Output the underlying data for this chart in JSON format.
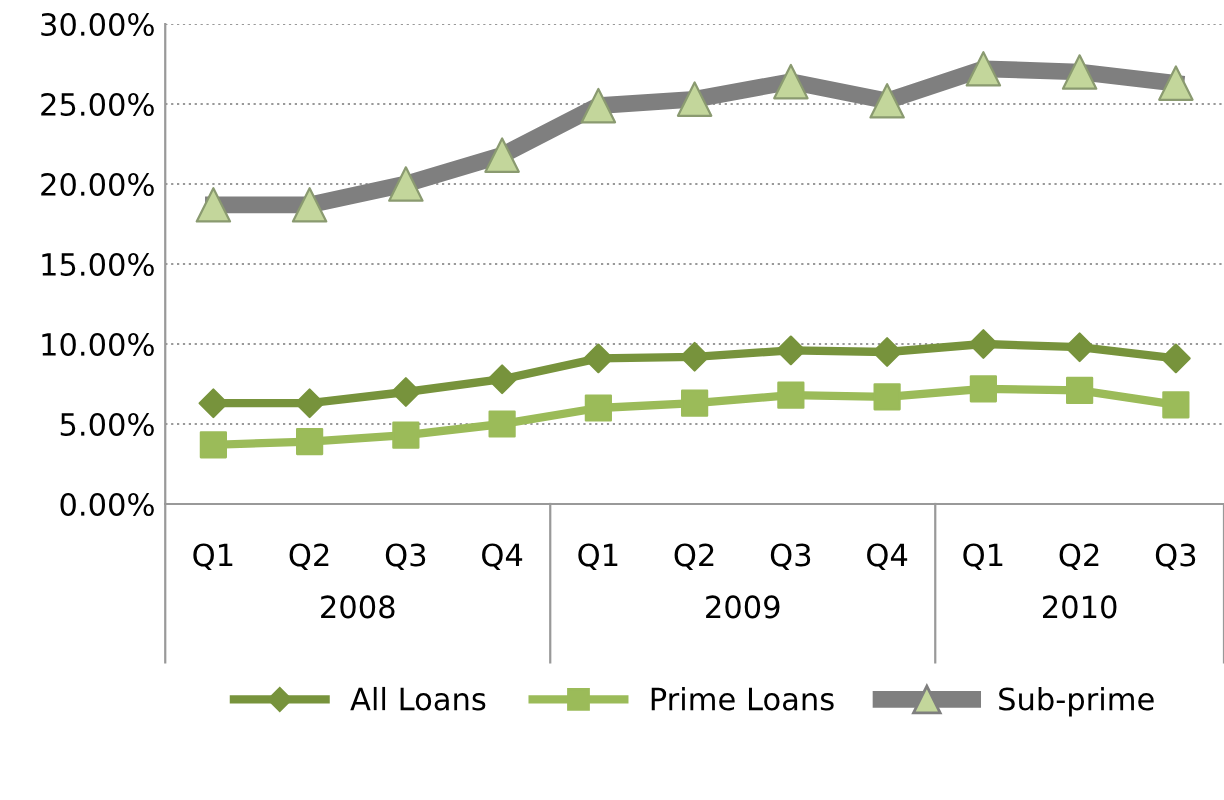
{
  "chart_data": {
    "type": "line",
    "categories": [
      "Q1",
      "Q2",
      "Q3",
      "Q4",
      "Q1",
      "Q2",
      "Q3",
      "Q4",
      "Q1",
      "Q2",
      "Q3"
    ],
    "series": [
      {
        "name": "All Loans",
        "color": "#77933c",
        "marker": "diamond",
        "values": [
          6.3,
          6.3,
          7.0,
          7.8,
          9.1,
          9.2,
          9.6,
          9.5,
          10.0,
          9.8,
          9.1
        ]
      },
      {
        "name": "Prime Loans",
        "color": "#9bbb59",
        "marker": "square",
        "values": [
          3.7,
          3.9,
          4.3,
          5.0,
          6.0,
          6.3,
          6.8,
          6.7,
          7.2,
          7.1,
          6.2
        ]
      },
      {
        "name": "Sub-prime",
        "color": "#7f7f7f",
        "marker": "triangle",
        "colors": [
          "#c3d69b",
          "#c3d69b",
          "#c3d69b",
          "#c3d69b",
          "#c3d69b",
          "#c3d69b",
          "#c3d69b",
          "#c3d69b",
          "#c3d69b",
          "#c3d69b",
          "#c3d69b"
        ],
        "values": [
          18.7,
          18.7,
          20.0,
          21.8,
          24.9,
          25.3,
          26.4,
          25.2,
          27.2,
          27.0,
          26.3
        ]
      }
    ],
    "annotations": [
      "2008",
      "2009",
      "2010"
    ],
    "ylim": [
      0,
      30
    ],
    "yticks": [
      {
        "value": 0,
        "label": "0.00%"
      },
      {
        "value": 5,
        "label": "5.00%"
      },
      {
        "value": 10,
        "label": "10.00%"
      },
      {
        "value": 15,
        "label": "15.00%"
      },
      {
        "value": 20,
        "label": "20.00%"
      },
      {
        "value": 25,
        "label": "25.00%"
      },
      {
        "value": 30,
        "label": "30.00%"
      }
    ],
    "grid": "y",
    "legend": "bottom",
    "line_style": "solid"
  }
}
